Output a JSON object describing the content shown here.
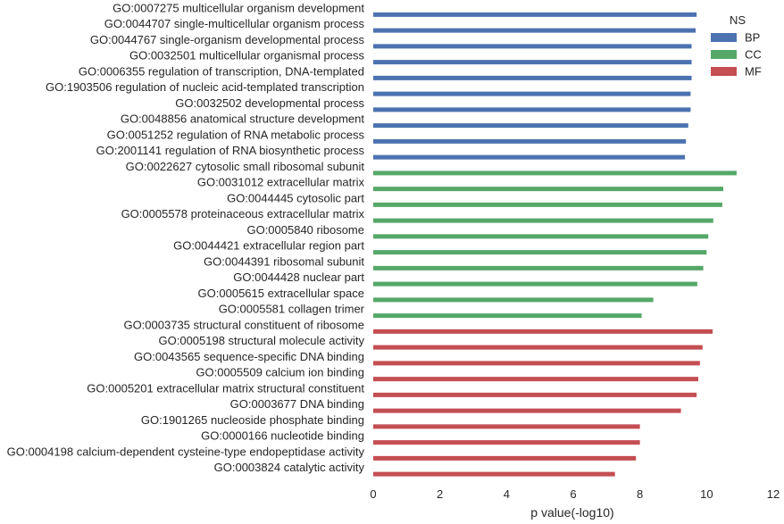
{
  "chart_data": {
    "type": "bar",
    "orientation": "horizontal",
    "title": "",
    "xlabel": "p value(-log10)",
    "ylabel": "",
    "xlim": [
      0,
      12
    ],
    "xticks": [
      "0",
      "2",
      "4",
      "6",
      "8",
      "10",
      "12"
    ],
    "grid": false,
    "legend": {
      "title": "NS",
      "placement": "top-right",
      "entries": [
        {
          "name": "BP",
          "color": "#4c72b0"
        },
        {
          "name": "CC",
          "color": "#55a868"
        },
        {
          "name": "MF",
          "color": "#c44e52"
        }
      ]
    },
    "categories": [
      "GO:0007275 multicellular organism development",
      "GO:0044707 single-multicellular organism process",
      "GO:0044767 single-organism developmental process",
      "GO:0032501 multicellular organismal process",
      "GO:0006355 regulation of transcription, DNA-templated",
      "GO:1903506 regulation of nucleic acid-templated transcription",
      "GO:0032502 developmental process",
      "GO:0048856 anatomical structure development",
      "GO:0051252 regulation of RNA metabolic process",
      "GO:2001141 regulation of RNA biosynthetic process",
      "GO:0022627 cytosolic small ribosomal subunit",
      "GO:0031012 extracellular matrix",
      "GO:0044445 cytosolic part",
      "GO:0005578 proteinaceous extracellular matrix",
      "GO:0005840 ribosome",
      "GO:0044421 extracellular region part",
      "GO:0044391 ribosomal subunit",
      "GO:0044428 nuclear part",
      "GO:0005615 extracellular space",
      "GO:0005581 collagen trimer",
      "GO:0003735 structural constituent of ribosome",
      "GO:0005198 structural molecule activity",
      "GO:0043565 sequence-specific DNA binding",
      "GO:0005509 calcium ion binding",
      "GO:0005201 extracellular matrix structural constituent",
      "GO:0003677 DNA binding",
      "GO:1901265 nucleoside phosphate binding",
      "GO:0000166 nucleotide binding",
      "GO:0004198 calcium-dependent cysteine-type endopeptidase activity",
      "GO:0003824 catalytic activity"
    ],
    "values": [
      9.7,
      9.67,
      9.55,
      9.55,
      9.55,
      9.52,
      9.52,
      9.45,
      9.38,
      9.35,
      10.9,
      10.5,
      10.47,
      10.2,
      10.05,
      10.0,
      9.9,
      9.72,
      8.4,
      8.05,
      10.18,
      9.88,
      9.8,
      9.75,
      9.7,
      9.23,
      8.0,
      8.0,
      7.88,
      7.25
    ],
    "groups": [
      "BP",
      "BP",
      "BP",
      "BP",
      "BP",
      "BP",
      "BP",
      "BP",
      "BP",
      "BP",
      "CC",
      "CC",
      "CC",
      "CC",
      "CC",
      "CC",
      "CC",
      "CC",
      "CC",
      "CC",
      "MF",
      "MF",
      "MF",
      "MF",
      "MF",
      "MF",
      "MF",
      "MF",
      "MF",
      "MF"
    ]
  }
}
